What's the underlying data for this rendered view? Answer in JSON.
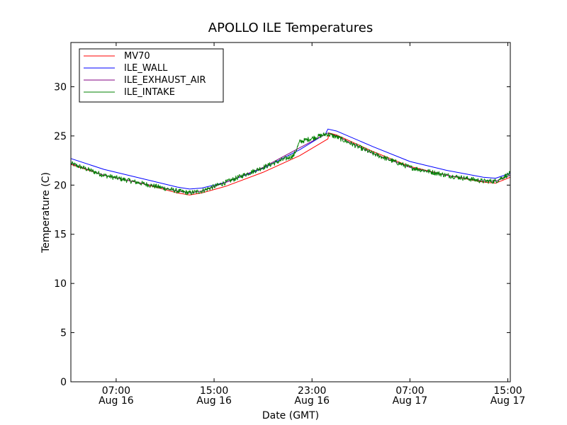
{
  "chart_data": {
    "type": "line",
    "title": "APOLLO ILE Temperatures",
    "xlabel": "Date (GMT)",
    "ylabel": "Temperature (C)",
    "x_unit": "hours since Aug 16 00:00 GMT",
    "xlim": [
      3.3,
      39.2
    ],
    "ylim": [
      0,
      34.5
    ],
    "yticks": [
      0,
      5,
      10,
      15,
      20,
      25,
      30
    ],
    "xticks": [
      {
        "x": 7,
        "line1": "07:00",
        "line2": "Aug 16"
      },
      {
        "x": 15,
        "line1": "15:00",
        "line2": "Aug 16"
      },
      {
        "x": 23,
        "line1": "23:00",
        "line2": "Aug 16"
      },
      {
        "x": 31,
        "line1": "07:00",
        "line2": "Aug 17"
      },
      {
        "x": 39,
        "line1": "15:00",
        "line2": "Aug 17"
      }
    ],
    "legend_position": "top-left",
    "series": [
      {
        "name": "MV70",
        "color": "#ff0000",
        "x": [
          3.3,
          6,
          9,
          12,
          13,
          14,
          16,
          19,
          22,
          24.3,
          24.4,
          25,
          28,
          31,
          34,
          37,
          38,
          39.2
        ],
        "values": [
          22.1,
          21.0,
          20.2,
          19.2,
          19.0,
          19.2,
          19.9,
          21.3,
          23.0,
          24.7,
          25.3,
          25.1,
          23.4,
          21.9,
          21.0,
          20.3,
          20.2,
          20.8
        ]
      },
      {
        "name": "ILE_WALL",
        "color": "#0000ff",
        "x": [
          3.3,
          6,
          9,
          12,
          13,
          14,
          16,
          19,
          22,
          24.1,
          24.3,
          25,
          28,
          31,
          34,
          37,
          38,
          39.2
        ],
        "values": [
          22.7,
          21.6,
          20.7,
          19.8,
          19.6,
          19.7,
          20.3,
          21.7,
          23.6,
          25.2,
          25.7,
          25.5,
          23.9,
          22.4,
          21.5,
          20.8,
          20.7,
          21.2
        ]
      },
      {
        "name": "ILE_EXHAUST_AIR",
        "color": "#800080",
        "x": [
          3.3,
          6,
          9,
          12,
          13,
          14,
          16,
          19,
          22,
          24.3,
          25,
          28,
          31,
          34,
          37,
          38,
          39.2
        ],
        "values": [
          22.2,
          21.0,
          20.2,
          19.4,
          19.2,
          19.4,
          20.3,
          21.8,
          23.8,
          25.3,
          25.0,
          23.2,
          21.8,
          21.0,
          20.4,
          20.4,
          21.0
        ]
      },
      {
        "name": "ILE_INTAKE",
        "color": "#008000",
        "x": [
          3.3,
          6,
          9,
          12,
          13,
          14,
          16,
          19,
          21.5,
          22,
          24.2,
          25,
          28,
          31,
          34,
          37,
          38,
          39.2
        ],
        "values": [
          22.2,
          21.0,
          20.2,
          19.4,
          19.2,
          19.4,
          20.3,
          21.8,
          23.0,
          24.4,
          25.2,
          24.9,
          23.2,
          21.8,
          21.0,
          20.4,
          20.4,
          21.2
        ],
        "noise_amplitude": 0.25
      }
    ]
  }
}
